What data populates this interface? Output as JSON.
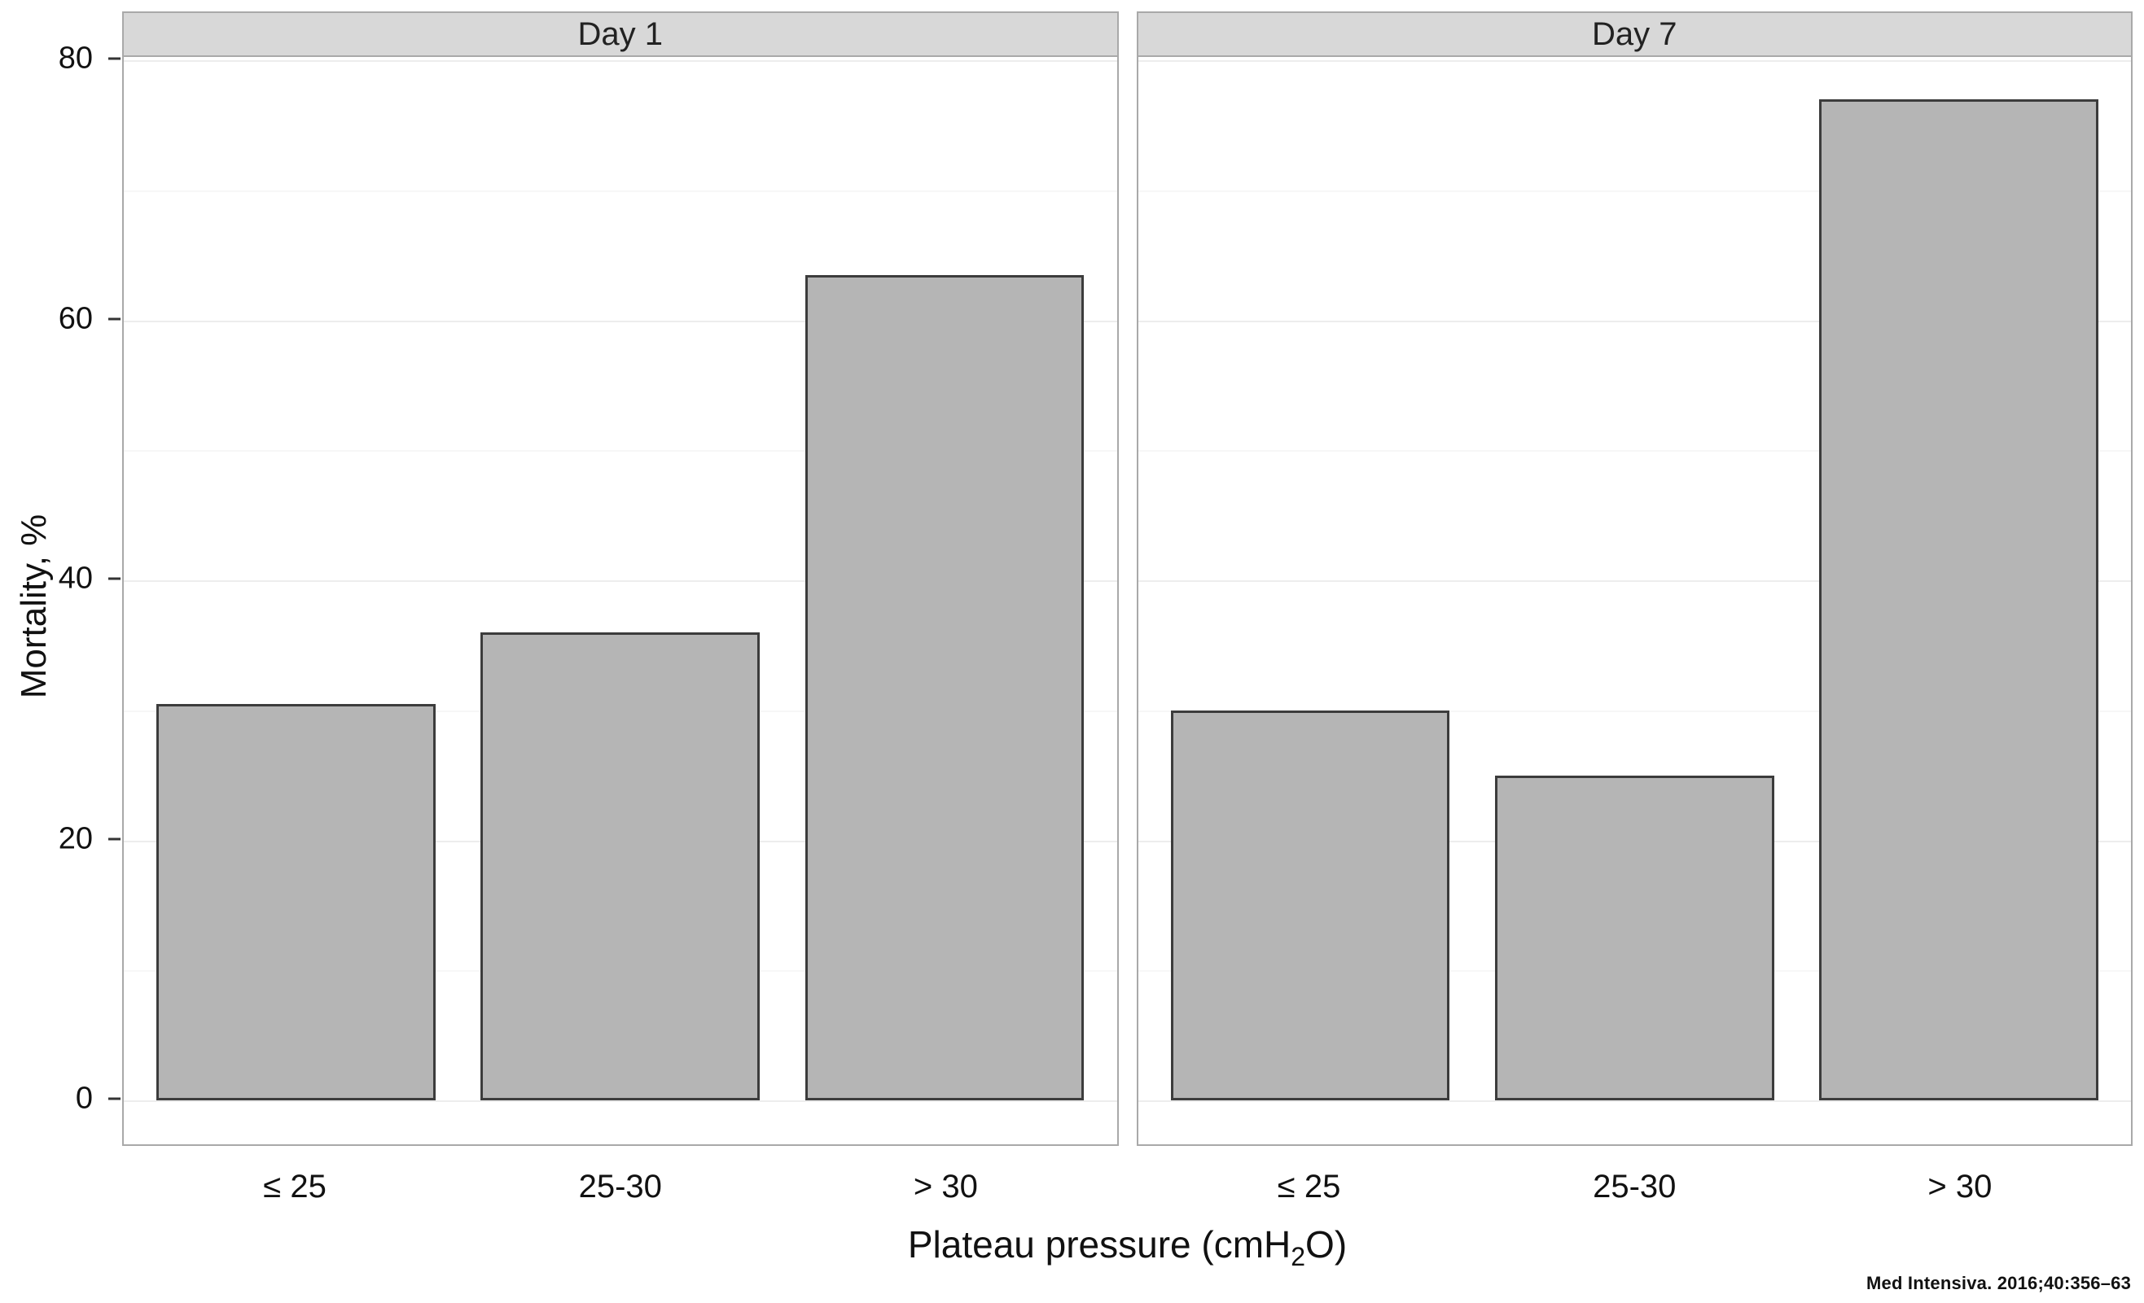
{
  "chart_data": {
    "type": "bar",
    "title": "",
    "categories": [
      "≤ 25",
      "25-30",
      "> 30"
    ],
    "facets": [
      {
        "label": "Day 1",
        "values": [
          30.5,
          36,
          63.5
        ]
      },
      {
        "label": "Day 7",
        "values": [
          30,
          25,
          77
        ]
      }
    ],
    "ylabel": "Mortality, %",
    "xlabel_parts": {
      "pre": "Plateau pressure (cmH",
      "sub": "2",
      "post": "O)"
    },
    "ylim": [
      0,
      80
    ],
    "yticks": [
      0,
      20,
      40,
      60,
      80
    ],
    "yticks_minor": [
      10,
      30,
      50,
      70
    ],
    "grid": "on",
    "legend": "none",
    "bar_color": "#b5b5b5",
    "bar_border_color": "#3c3c3c",
    "strip_bg": "#d8d8d8",
    "panel_border": "#a9a9a9"
  },
  "citation": "Med Intensiva. 2016;40:356–63"
}
